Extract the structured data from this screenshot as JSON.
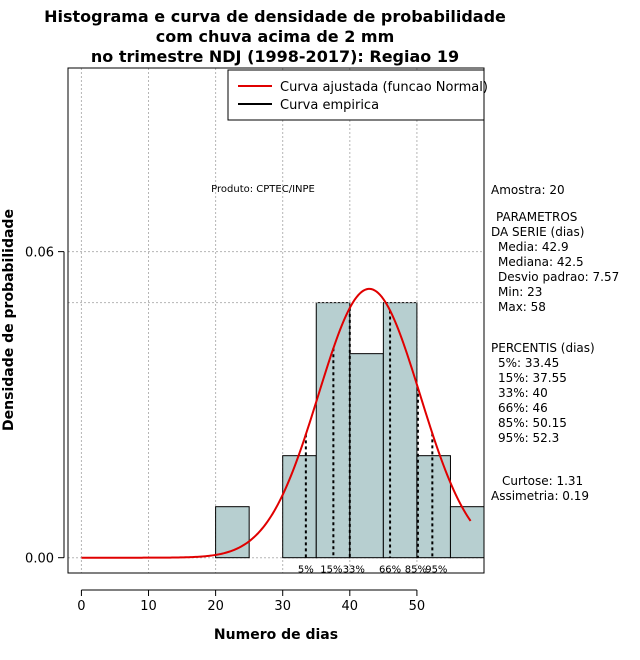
{
  "chart_data": {
    "type": "histogram",
    "title_lines": [
      "Histograma e curva de densidade de probabilidade",
      "com chuva acima de 2 mm",
      "no trimestre NDJ (1998-2017): Regiao 19"
    ],
    "xlabel": "Numero de dias",
    "ylabel": "Densidade de probabilidade",
    "xlim": [
      -2,
      60
    ],
    "ylim": [
      -0.003,
      0.096
    ],
    "x_ticks": [
      0,
      10,
      20,
      30,
      40,
      50
    ],
    "y_ticks": [
      0.0,
      0.06
    ],
    "y_tick_labels": [
      "0.00",
      "0.06"
    ],
    "bins": [
      {
        "x0": 20,
        "x1": 25,
        "density": 0.01
      },
      {
        "x0": 30,
        "x1": 35,
        "density": 0.02
      },
      {
        "x0": 35,
        "x1": 40,
        "density": 0.05
      },
      {
        "x0": 40,
        "x1": 45,
        "density": 0.04
      },
      {
        "x0": 45,
        "x1": 50,
        "density": 0.05
      },
      {
        "x0": 50,
        "x1": 55,
        "density": 0.02
      },
      {
        "x0": 55,
        "x1": 60,
        "density": 0.01
      }
    ],
    "bar_color": "#b7cfd0",
    "curve": {
      "name": "Curva ajustada (funcao Normal)",
      "mean": 42.9,
      "sd": 7.57,
      "x_range": [
        0,
        58
      ],
      "color": "#e00000"
    },
    "legend": [
      {
        "label": "Curva ajustada (funcao Normal)",
        "color": "#e00000"
      },
      {
        "label": "Curva empirica",
        "color": "#000000"
      }
    ],
    "legend_position": "top-right",
    "reference_line_y": 0.05,
    "grid": true,
    "percentile_lines": [
      {
        "label": "5%",
        "value": 33.45
      },
      {
        "label": "15%",
        "value": 37.55
      },
      {
        "label": "33%",
        "value": 40
      },
      {
        "label": "66%",
        "value": 46
      },
      {
        "label": "85%",
        "value": 50.15
      },
      {
        "label": "95%",
        "value": 52.3
      }
    ],
    "annotation": "Produto: CPTEC/INPE",
    "stats": {
      "amostra": "Amostra: 20",
      "param_title1": "PARAMETROS",
      "param_title2": "DA SERIE (dias)",
      "media": "Media: 42.9",
      "mediana": "Mediana: 42.5",
      "desvio": "Desvio padrao: 7.57",
      "min": "Min: 23",
      "max": "Max: 58",
      "perc_title": "PERCENTIS (dias)",
      "p5": "5%: 33.45",
      "p15": "15%: 37.55",
      "p33": "33%: 40",
      "p66": "66%: 46",
      "p85": "85%: 50.15",
      "p95": "95%: 52.3",
      "curtose": "Curtose: 1.31",
      "assimetria": "Assimetria: 0.19"
    }
  }
}
